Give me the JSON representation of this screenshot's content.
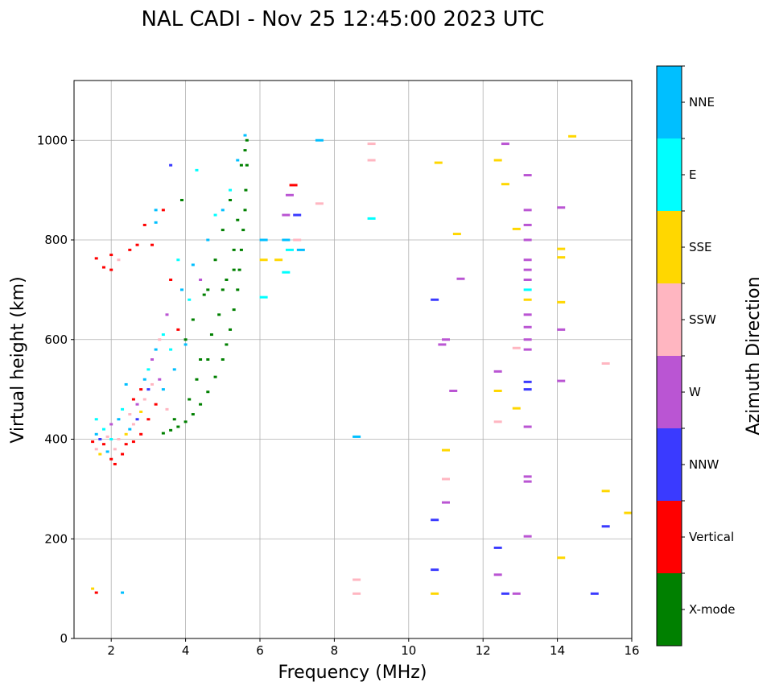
{
  "chart_data": {
    "type": "scatter",
    "title": "NAL CADI - Nov 25 12:45:00 2023 UTC",
    "xlabel": "Frequency (MHz)",
    "ylabel": "Virtual height (km)",
    "xlim": [
      1,
      16
    ],
    "ylim": [
      0,
      1120
    ],
    "xticks": [
      "2",
      "4",
      "6",
      "8",
      "10",
      "12",
      "14",
      "16"
    ],
    "yticks": [
      "0",
      "200",
      "400",
      "600",
      "800",
      "1000"
    ],
    "grid": true,
    "colorbar": {
      "label": "Azimuth Direction",
      "categories": [
        "X-mode",
        "Vertical",
        "NNW",
        "W",
        "SSW",
        "SSE",
        "E",
        "NNE"
      ],
      "colors": [
        "#008000",
        "#ff0000",
        "#3a3aff",
        "#ba55d3",
        "#ffb6c1",
        "#ffd700",
        "#00ffff",
        "#00bfff"
      ]
    },
    "point_format": [
      "frequency_MHz",
      "virtual_height_km",
      "azimuth_category_index"
    ],
    "points": [
      [
        3.4,
        412,
        0
      ],
      [
        3.6,
        418,
        0
      ],
      [
        3.8,
        425,
        0
      ],
      [
        4.0,
        435,
        0
      ],
      [
        4.2,
        450,
        0
      ],
      [
        4.4,
        470,
        0
      ],
      [
        4.6,
        495,
        0
      ],
      [
        4.8,
        525,
        0
      ],
      [
        5.0,
        560,
        0
      ],
      [
        5.1,
        590,
        0
      ],
      [
        5.2,
        620,
        0
      ],
      [
        5.3,
        660,
        0
      ],
      [
        5.4,
        700,
        0
      ],
      [
        5.45,
        740,
        0
      ],
      [
        5.5,
        780,
        0
      ],
      [
        5.55,
        820,
        0
      ],
      [
        5.6,
        860,
        0
      ],
      [
        5.62,
        900,
        0
      ],
      [
        5.65,
        950,
        0
      ],
      [
        5.65,
        1000,
        0
      ],
      [
        4.2,
        640,
        0
      ],
      [
        4.4,
        560,
        0
      ],
      [
        4.6,
        700,
        0
      ],
      [
        4.8,
        760,
        0
      ],
      [
        5.0,
        820,
        0
      ],
      [
        5.2,
        880,
        0
      ],
      [
        4.0,
        600,
        0
      ],
      [
        3.9,
        880,
        0
      ],
      [
        4.5,
        690,
        0
      ],
      [
        4.7,
        610,
        0
      ],
      [
        5.3,
        780,
        0
      ],
      [
        5.5,
        950,
        0
      ],
      [
        5.1,
        720,
        0
      ],
      [
        4.3,
        520,
        0
      ],
      [
        3.7,
        440,
        0
      ],
      [
        4.9,
        650,
        0
      ],
      [
        5.4,
        840,
        0
      ],
      [
        5.6,
        980,
        0
      ],
      [
        4.1,
        480,
        0
      ],
      [
        4.6,
        560,
        0
      ],
      [
        5.0,
        700,
        0
      ],
      [
        5.3,
        740,
        0
      ],
      [
        1.5,
        395,
        1
      ],
      [
        1.6,
        410,
        7
      ],
      [
        1.6,
        380,
        4
      ],
      [
        1.7,
        400,
        2
      ],
      [
        1.7,
        370,
        5
      ],
      [
        1.8,
        420,
        6
      ],
      [
        1.8,
        390,
        1
      ],
      [
        1.9,
        405,
        4
      ],
      [
        1.9,
        375,
        7
      ],
      [
        2.0,
        360,
        1
      ],
      [
        2.0,
        430,
        3
      ],
      [
        2.1,
        380,
        4
      ],
      [
        2.1,
        350,
        1
      ],
      [
        2.2,
        440,
        7
      ],
      [
        2.2,
        400,
        4
      ],
      [
        2.3,
        370,
        1
      ],
      [
        2.3,
        460,
        6
      ],
      [
        2.4,
        410,
        5
      ],
      [
        2.4,
        390,
        1
      ],
      [
        2.5,
        450,
        4
      ],
      [
        2.5,
        420,
        7
      ],
      [
        2.6,
        480,
        1
      ],
      [
        2.6,
        430,
        4
      ],
      [
        2.6,
        395,
        1
      ],
      [
        2.7,
        470,
        3
      ],
      [
        2.7,
        440,
        2
      ],
      [
        2.8,
        500,
        1
      ],
      [
        2.8,
        455,
        5
      ],
      [
        2.8,
        410,
        1
      ],
      [
        2.9,
        520,
        7
      ],
      [
        2.9,
        480,
        4
      ],
      [
        3.0,
        540,
        6
      ],
      [
        3.0,
        500,
        2
      ],
      [
        3.0,
        440,
        1
      ],
      [
        3.1,
        560,
        3
      ],
      [
        3.1,
        510,
        4
      ],
      [
        3.2,
        580,
        7
      ],
      [
        3.2,
        470,
        1
      ],
      [
        3.3,
        600,
        4
      ],
      [
        3.3,
        520,
        3
      ],
      [
        3.4,
        610,
        6
      ],
      [
        3.4,
        500,
        7
      ],
      [
        3.5,
        650,
        3
      ],
      [
        3.5,
        460,
        4
      ],
      [
        3.6,
        720,
        1
      ],
      [
        3.6,
        580,
        6
      ],
      [
        3.7,
        540,
        7
      ],
      [
        3.8,
        760,
        6
      ],
      [
        3.8,
        620,
        1
      ],
      [
        3.9,
        700,
        7
      ],
      [
        4.0,
        590,
        7
      ],
      [
        4.1,
        680,
        6
      ],
      [
        4.2,
        750,
        7
      ],
      [
        4.4,
        720,
        3
      ],
      [
        4.6,
        800,
        7
      ],
      [
        4.8,
        850,
        6
      ],
      [
        5.0,
        860,
        7
      ],
      [
        5.2,
        900,
        6
      ],
      [
        5.4,
        960,
        7
      ],
      [
        5.6,
        1010,
        7
      ],
      [
        4.3,
        940,
        6
      ],
      [
        3.6,
        950,
        2
      ],
      [
        3.2,
        860,
        7
      ],
      [
        2.4,
        510,
        7
      ],
      [
        2.0,
        400,
        6
      ],
      [
        1.6,
        440,
        6
      ],
      [
        1.5,
        100,
        5
      ],
      [
        1.6,
        92,
        1
      ],
      [
        2.3,
        92,
        7
      ],
      [
        1.6,
        763,
        1
      ],
      [
        2.0,
        770,
        1
      ],
      [
        2.2,
        760,
        4
      ],
      [
        2.5,
        780,
        1
      ],
      [
        2.7,
        790,
        1
      ],
      [
        2.0,
        740,
        1
      ],
      [
        1.8,
        745,
        1
      ],
      [
        2.9,
        830,
        1
      ],
      [
        3.2,
        835,
        7
      ],
      [
        3.4,
        860,
        1
      ],
      [
        3.1,
        790,
        1
      ],
      [
        6.1,
        800,
        7
      ],
      [
        6.1,
        760,
        5
      ],
      [
        6.7,
        850,
        3
      ],
      [
        6.7,
        800,
        7
      ],
      [
        6.8,
        780,
        6
      ],
      [
        7.0,
        850,
        2
      ],
      [
        7.0,
        800,
        4
      ],
      [
        7.1,
        780,
        7
      ],
      [
        6.5,
        760,
        5
      ],
      [
        6.7,
        735,
        6
      ],
      [
        6.9,
        910,
        1
      ],
      [
        6.8,
        890,
        3
      ],
      [
        7.6,
        873,
        4
      ],
      [
        6.1,
        685,
        6
      ],
      [
        7.6,
        1000,
        7
      ],
      [
        9.0,
        993,
        4
      ],
      [
        9.0,
        960,
        4
      ],
      [
        9.0,
        843,
        6
      ],
      [
        8.6,
        405,
        7
      ],
      [
        8.6,
        118,
        4
      ],
      [
        8.6,
        90,
        4
      ],
      [
        10.8,
        955,
        5
      ],
      [
        11.3,
        812,
        5
      ],
      [
        11.4,
        722,
        3
      ],
      [
        10.7,
        680,
        2
      ],
      [
        11.0,
        600,
        3
      ],
      [
        10.9,
        590,
        3
      ],
      [
        11.2,
        497,
        3
      ],
      [
        11.0,
        378,
        5
      ],
      [
        11.0,
        320,
        4
      ],
      [
        11.0,
        273,
        3
      ],
      [
        10.7,
        238,
        2
      ],
      [
        10.7,
        138,
        2
      ],
      [
        10.7,
        90,
        5
      ],
      [
        12.4,
        960,
        5
      ],
      [
        12.6,
        993,
        3
      ],
      [
        12.6,
        912,
        5
      ],
      [
        12.9,
        822,
        5
      ],
      [
        12.9,
        583,
        4
      ],
      [
        12.4,
        536,
        3
      ],
      [
        12.4,
        497,
        5
      ],
      [
        12.9,
        462,
        5
      ],
      [
        12.4,
        435,
        4
      ],
      [
        12.4,
        182,
        2
      ],
      [
        12.4,
        128,
        3
      ],
      [
        12.6,
        90,
        2
      ],
      [
        12.9,
        90,
        3
      ],
      [
        13.2,
        930,
        3
      ],
      [
        13.2,
        860,
        3
      ],
      [
        13.2,
        830,
        3
      ],
      [
        13.2,
        800,
        3
      ],
      [
        13.2,
        760,
        3
      ],
      [
        13.2,
        740,
        3
      ],
      [
        13.2,
        720,
        3
      ],
      [
        13.2,
        700,
        6
      ],
      [
        13.2,
        680,
        5
      ],
      [
        13.2,
        650,
        3
      ],
      [
        13.2,
        625,
        3
      ],
      [
        13.2,
        600,
        3
      ],
      [
        13.2,
        580,
        3
      ],
      [
        13.2,
        515,
        2
      ],
      [
        13.2,
        500,
        2
      ],
      [
        13.2,
        425,
        3
      ],
      [
        13.2,
        325,
        3
      ],
      [
        13.2,
        315,
        3
      ],
      [
        13.2,
        205,
        3
      ],
      [
        14.1,
        865,
        3
      ],
      [
        14.1,
        782,
        5
      ],
      [
        14.1,
        765,
        5
      ],
      [
        14.1,
        675,
        5
      ],
      [
        14.1,
        620,
        3
      ],
      [
        14.1,
        517,
        3
      ],
      [
        14.1,
        162,
        5
      ],
      [
        14.4,
        1008,
        5
      ],
      [
        15.3,
        552,
        4
      ],
      [
        15.3,
        296,
        5
      ],
      [
        15.9,
        252,
        5
      ],
      [
        15.3,
        225,
        2
      ],
      [
        15.0,
        90,
        2
      ]
    ]
  }
}
